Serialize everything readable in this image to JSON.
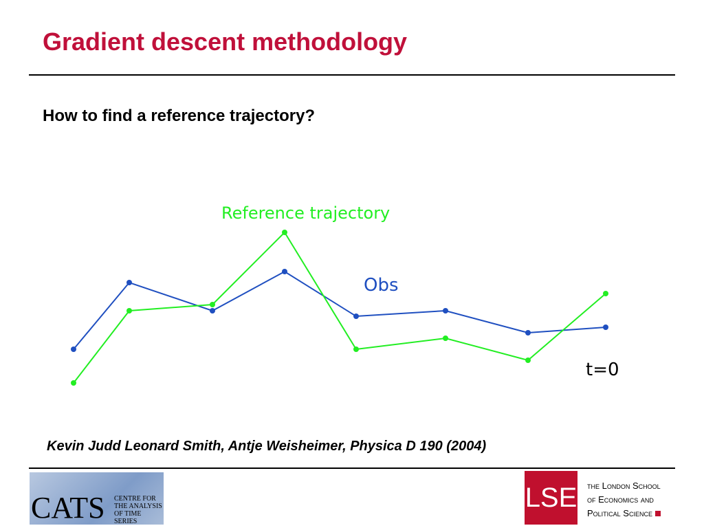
{
  "header": {
    "title": "Gradient descent methodology"
  },
  "subtitle": "How to find a reference trajectory?",
  "figure": {
    "reference_label": "Reference trajectory",
    "obs_label": "Obs",
    "time_label": "t=0"
  },
  "citation": "Kevin Judd Leonard Smith, Antje Weisheimer, Physica D 190 (2004)",
  "footer": {
    "cats": {
      "logo": "CATS",
      "caption": [
        "CENTRE FOR",
        "THE ANALYSIS",
        "OF TIME SERIES"
      ]
    },
    "lse": {
      "logo": "LSE",
      "caption": [
        "the London School",
        "of Economics and",
        "Political Science"
      ]
    }
  }
}
